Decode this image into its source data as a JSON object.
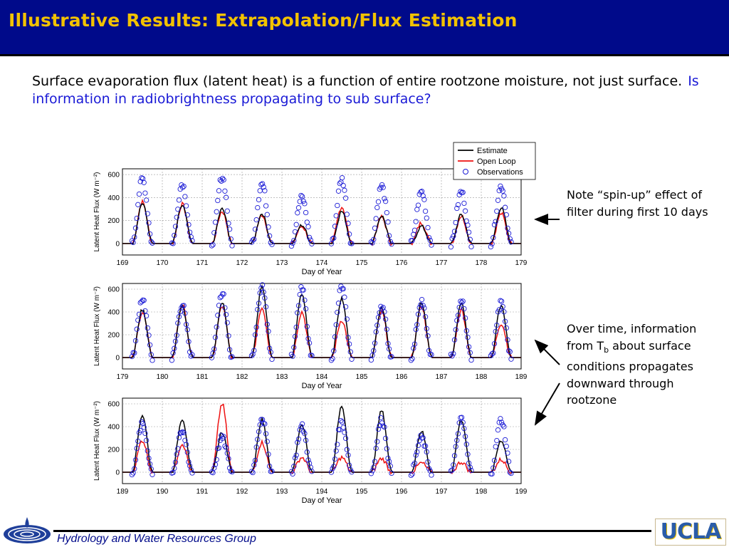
{
  "slide": {
    "title": "Illustrative Results: Extrapolation/Flux Estimation",
    "intro_text": "Surface evaporation flux (latent heat) is a function of entire rootzone moisture, not just surface.",
    "intro_question": "Is information in radiobrightness propagating to sub surface?",
    "note_spinup": "Note “spin-up” effect of filter during first 10 days",
    "note_overtime_a": "Over time, information from T",
    "note_overtime_sub": "b",
    "note_overtime_b": " about surface conditions propagates downward through rootzone",
    "footer": "Hydrology and Water Resources Group",
    "logo_right": "UCLA",
    "colors": {
      "title_bg": "#000a8a",
      "title_text": "#f2c200",
      "question_text": "#1a1ad6",
      "estimate": "#000000",
      "open_loop": "#ee1111",
      "observations": "#1a1ad6"
    },
    "icons": [
      "left-arrow-icon",
      "diagonal-arrow-up-icon",
      "diagonal-arrow-down-icon",
      "water-drop-logo-icon"
    ]
  },
  "chart_data": [
    {
      "type": "line",
      "panel": 1,
      "xlabel": "Day of Year",
      "ylabel": "Latent Heat Flux (W m⁻²)",
      "xlim": [
        169,
        179
      ],
      "ylim": [
        -100,
        650
      ],
      "yticks": [
        0,
        200,
        400,
        600
      ],
      "xticks": [
        169,
        170,
        171,
        172,
        173,
        174,
        175,
        176,
        177,
        178,
        179
      ],
      "grid": true,
      "legend": {
        "placement": "top-right",
        "entries": [
          "Estimate",
          "Open Loop",
          "Observations"
        ]
      },
      "daily_peaks": {
        "estimate": [
          350,
          330,
          300,
          260,
          160,
          280,
          240,
          150,
          250,
          310
        ],
        "open_loop": [
          360,
          340,
          280,
          250,
          150,
          320,
          230,
          180,
          240,
          260
        ],
        "observations": [
          560,
          520,
          580,
          520,
          400,
          560,
          500,
          450,
          450,
          500
        ]
      }
    },
    {
      "type": "line",
      "panel": 2,
      "xlabel": "Day of Year",
      "ylabel": "Latent Heat Flux (W m⁻²)",
      "xlim": [
        179,
        189
      ],
      "ylim": [
        -100,
        650
      ],
      "yticks": [
        0,
        200,
        400,
        600
      ],
      "xticks": [
        179,
        180,
        181,
        182,
        183,
        184,
        185,
        186,
        187,
        188,
        189
      ],
      "grid": true,
      "daily_peaks": {
        "estimate": [
          420,
          450,
          480,
          620,
          560,
          520,
          440,
          480,
          470,
          460
        ],
        "open_loop": [
          400,
          460,
          450,
          440,
          400,
          330,
          400,
          450,
          420,
          300
        ],
        "observations": [
          520,
          460,
          560,
          640,
          600,
          620,
          460,
          500,
          500,
          480
        ]
      }
    },
    {
      "type": "line",
      "panel": 3,
      "xlabel": "Day of Year",
      "ylabel": "Latent Heat Flux (W m⁻²)",
      "xlim": [
        189,
        199
      ],
      "ylim": [
        -100,
        650
      ],
      "yticks": [
        0,
        200,
        400,
        600
      ],
      "xticks": [
        189,
        190,
        191,
        192,
        193,
        194,
        195,
        196,
        197,
        198,
        199
      ],
      "grid": true,
      "daily_peaks": {
        "estimate": [
          500,
          470,
          350,
          460,
          420,
          580,
          540,
          360,
          460,
          280
        ],
        "open_loop": [
          280,
          250,
          600,
          260,
          130,
          130,
          120,
          80,
          90,
          110
        ],
        "observations": [
          420,
          350,
          300,
          480,
          400,
          440,
          460,
          300,
          460,
          460
        ]
      }
    }
  ]
}
